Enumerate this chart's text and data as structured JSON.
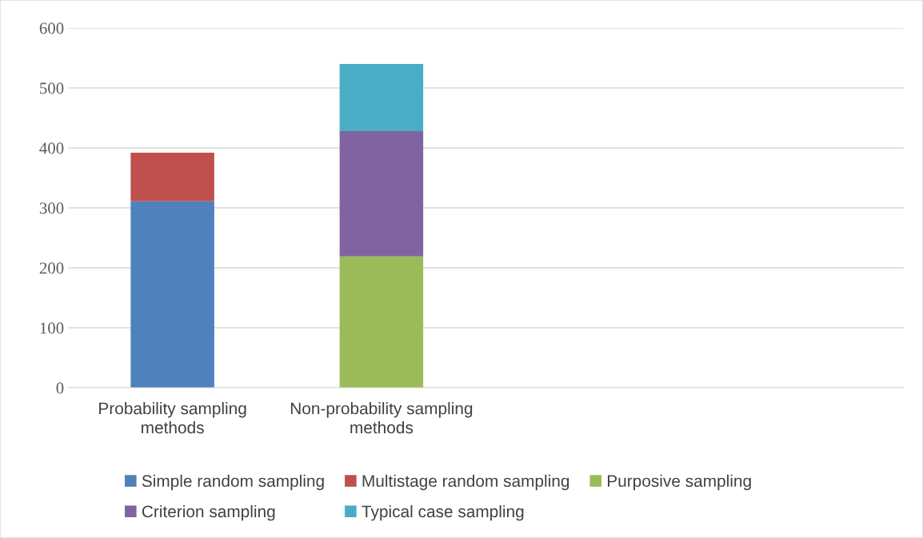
{
  "chart_data": {
    "type": "bar",
    "stacked": true,
    "categories": [
      "Probability sampling methods",
      "Non-probability sampling methods",
      null,
      null
    ],
    "series": [
      {
        "name": "Simple random sampling",
        "color": "#4f81bd",
        "values": [
          311,
          null,
          null,
          null
        ]
      },
      {
        "name": "Multistage random sampling",
        "color": "#c0504d",
        "values": [
          81,
          null,
          null,
          null
        ]
      },
      {
        "name": "Purposive sampling",
        "color": "#9bbb59",
        "values": [
          null,
          219,
          null,
          null
        ]
      },
      {
        "name": "Criterion sampling",
        "color": "#8064a2",
        "values": [
          null,
          209,
          null,
          null
        ]
      },
      {
        "name": "Typical case sampling",
        "color": "#4bacc6",
        "values": [
          null,
          112,
          null,
          null
        ]
      }
    ],
    "ylim": [
      0,
      600
    ],
    "yticks": [
      0,
      100,
      200,
      300,
      400,
      500,
      600
    ],
    "grid": "y",
    "legend": "bottom"
  }
}
